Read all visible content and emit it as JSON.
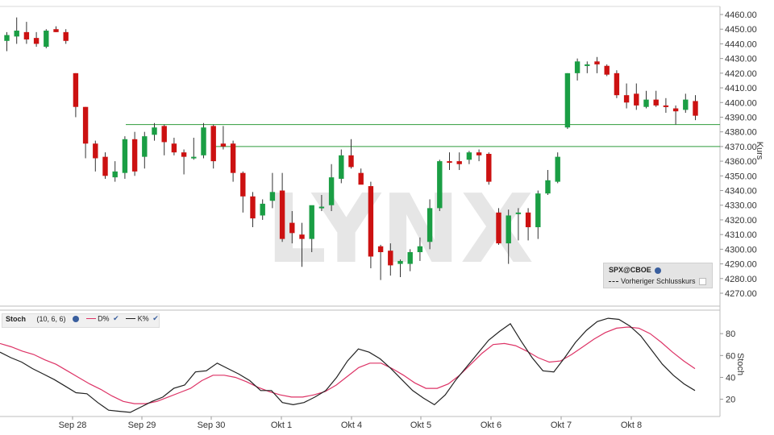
{
  "chart_data": [
    {
      "type": "candlestick",
      "symbol": "SPX@CBOE",
      "legend_entries": [
        "SPX@CBOE",
        "Vorheriger Schlusskurs"
      ],
      "ylabel": "Kurs",
      "ylim": [
        4265,
        4462
      ],
      "y_ticks": [
        "4460.00",
        "4450.00",
        "4440.00",
        "4430.00",
        "4420.00",
        "4410.00",
        "4400.00",
        "4390.00",
        "4380.00",
        "4370.00",
        "4360.00",
        "4350.00",
        "4340.00",
        "4330.00",
        "4320.00",
        "4310.00",
        "4300.00",
        "4290.00",
        "4280.00",
        "4270.00"
      ],
      "x_ticks": [
        "Sep 28",
        "Sep 29",
        "Sep 30",
        "Okt 1",
        "Okt 4",
        "Okt 5",
        "Okt 6",
        "Okt 7",
        "Okt 8"
      ],
      "horizontal_lines": [
        4385,
        4370
      ],
      "candles": [
        {
          "o": 4442,
          "h": 4448,
          "l": 4435,
          "c": 4446
        },
        {
          "o": 4445,
          "h": 4458,
          "l": 4440,
          "c": 4449
        },
        {
          "o": 4448,
          "h": 4455,
          "l": 4440,
          "c": 4443
        },
        {
          "o": 4444,
          "h": 4448,
          "l": 4438,
          "c": 4440
        },
        {
          "o": 4438,
          "h": 4450,
          "l": 4437,
          "c": 4449
        },
        {
          "o": 4450,
          "h": 4452,
          "l": 4448,
          "c": 4448
        },
        {
          "o": 4448,
          "h": 4450,
          "l": 4440,
          "c": 4442
        },
        {
          "o": 4420,
          "h": 4420,
          "l": 4390,
          "c": 4397
        },
        {
          "o": 4397,
          "h": 4397,
          "l": 4362,
          "c": 4372
        },
        {
          "o": 4372,
          "h": 4374,
          "l": 4353,
          "c": 4362
        },
        {
          "o": 4363,
          "h": 4366,
          "l": 4348,
          "c": 4350
        },
        {
          "o": 4349,
          "h": 4360,
          "l": 4346,
          "c": 4353
        },
        {
          "o": 4352,
          "h": 4377,
          "l": 4348,
          "c": 4375
        },
        {
          "o": 4375,
          "h": 4380,
          "l": 4350,
          "c": 4353
        },
        {
          "o": 4363,
          "h": 4380,
          "l": 4355,
          "c": 4377
        },
        {
          "o": 4378,
          "h": 4386,
          "l": 4374,
          "c": 4383
        },
        {
          "o": 4384,
          "h": 4385,
          "l": 4364,
          "c": 4373
        },
        {
          "o": 4372,
          "h": 4376,
          "l": 4364,
          "c": 4366
        },
        {
          "o": 4366,
          "h": 4368,
          "l": 4351,
          "c": 4363
        },
        {
          "o": 4363,
          "h": 4376,
          "l": 4361,
          "c": 4363
        },
        {
          "o": 4364,
          "h": 4386,
          "l": 4362,
          "c": 4383
        },
        {
          "o": 4384,
          "h": 4385,
          "l": 4355,
          "c": 4360
        },
        {
          "o": 4372,
          "h": 4384,
          "l": 4368,
          "c": 4370
        },
        {
          "o": 4372,
          "h": 4374,
          "l": 4346,
          "c": 4352
        },
        {
          "o": 4352,
          "h": 4353,
          "l": 4325,
          "c": 4336
        },
        {
          "o": 4336,
          "h": 4339,
          "l": 4315,
          "c": 4321
        },
        {
          "o": 4323,
          "h": 4334,
          "l": 4320,
          "c": 4331
        },
        {
          "o": 4333,
          "h": 4352,
          "l": 4328,
          "c": 4339
        },
        {
          "o": 4340,
          "h": 4352,
          "l": 4305,
          "c": 4307
        },
        {
          "o": 4318,
          "h": 4326,
          "l": 4304,
          "c": 4311
        },
        {
          "o": 4310,
          "h": 4318,
          "l": 4288,
          "c": 4307
        },
        {
          "o": 4307,
          "h": 4329,
          "l": 4298,
          "c": 4330
        },
        {
          "o": 4328,
          "h": 4337,
          "l": 4326,
          "c": 4329
        },
        {
          "o": 4330,
          "h": 4358,
          "l": 4326,
          "c": 4349
        },
        {
          "o": 4348,
          "h": 4368,
          "l": 4345,
          "c": 4364
        },
        {
          "o": 4364,
          "h": 4375,
          "l": 4355,
          "c": 4356
        },
        {
          "o": 4352,
          "h": 4355,
          "l": 4345,
          "c": 4344
        },
        {
          "o": 4343,
          "h": 4346,
          "l": 4287,
          "c": 4295
        },
        {
          "o": 4302,
          "h": 4303,
          "l": 4279,
          "c": 4298
        },
        {
          "o": 4299,
          "h": 4304,
          "l": 4282,
          "c": 4289
        },
        {
          "o": 4290,
          "h": 4293,
          "l": 4281,
          "c": 4292
        },
        {
          "o": 4290,
          "h": 4300,
          "l": 4285,
          "c": 4298
        },
        {
          "o": 4298,
          "h": 4308,
          "l": 4292,
          "c": 4302
        },
        {
          "o": 4305,
          "h": 4334,
          "l": 4300,
          "c": 4328
        },
        {
          "o": 4328,
          "h": 4361,
          "l": 4326,
          "c": 4360
        },
        {
          "o": 4360,
          "h": 4366,
          "l": 4354,
          "c": 4359
        },
        {
          "o": 4360,
          "h": 4366,
          "l": 4354,
          "c": 4358
        },
        {
          "o": 4361,
          "h": 4367,
          "l": 4358,
          "c": 4366
        },
        {
          "o": 4366,
          "h": 4368,
          "l": 4360,
          "c": 4364
        },
        {
          "o": 4365,
          "h": 4366,
          "l": 4344,
          "c": 4346
        },
        {
          "o": 4325,
          "h": 4328,
          "l": 4303,
          "c": 4304
        },
        {
          "o": 4304,
          "h": 4327,
          "l": 4290,
          "c": 4323
        },
        {
          "o": 4324,
          "h": 4328,
          "l": 4306,
          "c": 4325
        },
        {
          "o": 4325,
          "h": 4328,
          "l": 4306,
          "c": 4315
        },
        {
          "o": 4315,
          "h": 4340,
          "l": 4307,
          "c": 4338
        },
        {
          "o": 4338,
          "h": 4354,
          "l": 4337,
          "c": 4347
        },
        {
          "o": 4346,
          "h": 4366,
          "l": 4345,
          "c": 4363
        },
        {
          "o": 4383,
          "h": 4420,
          "l": 4382,
          "c": 4420
        },
        {
          "o": 4420,
          "h": 4430,
          "l": 4415,
          "c": 4428
        },
        {
          "o": 4426,
          "h": 4428,
          "l": 4420,
          "c": 4426
        },
        {
          "o": 4428,
          "h": 4431,
          "l": 4420,
          "c": 4426
        },
        {
          "o": 4425,
          "h": 4426,
          "l": 4418,
          "c": 4419
        },
        {
          "o": 4420,
          "h": 4422,
          "l": 4403,
          "c": 4405
        },
        {
          "o": 4405,
          "h": 4413,
          "l": 4396,
          "c": 4400
        },
        {
          "o": 4406,
          "h": 4413,
          "l": 4395,
          "c": 4398
        },
        {
          "o": 4397,
          "h": 4408,
          "l": 4396,
          "c": 4402
        },
        {
          "o": 4402,
          "h": 4408,
          "l": 4397,
          "c": 4398
        },
        {
          "o": 4398,
          "h": 4403,
          "l": 4393,
          "c": 4397
        },
        {
          "o": 4396,
          "h": 4398,
          "l": 4385,
          "c": 4394
        },
        {
          "o": 4395,
          "h": 4406,
          "l": 4393,
          "c": 4402
        },
        {
          "o": 4401,
          "h": 4405,
          "l": 4388,
          "c": 4391
        }
      ]
    },
    {
      "type": "line",
      "indicator": "Stoch",
      "params": "(10, 6, 6)",
      "ylabel": "Stoch",
      "ylim": [
        5,
        100
      ],
      "y_ticks": [
        "80",
        "60",
        "40",
        "20"
      ],
      "series": [
        {
          "name": "D%",
          "color": "#dd3366",
          "values": [
            71,
            68,
            64,
            61,
            56,
            52,
            46,
            40,
            34,
            29,
            23,
            18,
            16,
            16,
            18,
            22,
            26,
            30,
            37,
            42,
            42,
            40,
            36,
            31,
            27,
            24,
            22,
            22,
            24,
            27,
            33,
            41,
            49,
            53,
            53,
            48,
            42,
            35,
            30,
            30,
            34,
            42,
            52,
            62,
            70,
            71,
            69,
            64,
            58,
            54,
            55,
            61,
            68,
            75,
            81,
            85,
            86,
            85,
            80,
            72,
            63,
            55,
            48
          ]
        },
        {
          "name": "K%",
          "color": "#222222",
          "values": [
            63,
            58,
            54,
            48,
            43,
            38,
            32,
            26,
            25,
            17,
            10,
            9,
            8,
            13,
            18,
            22,
            30,
            33,
            45,
            46,
            53,
            48,
            43,
            37,
            28,
            28,
            17,
            15,
            17,
            22,
            28,
            40,
            55,
            66,
            63,
            57,
            48,
            38,
            28,
            21,
            15,
            24,
            38,
            50,
            62,
            74,
            82,
            89,
            73,
            58,
            46,
            45,
            58,
            72,
            83,
            91,
            94,
            93,
            87,
            78,
            65,
            52,
            42,
            34,
            28
          ]
        }
      ]
    }
  ]
}
